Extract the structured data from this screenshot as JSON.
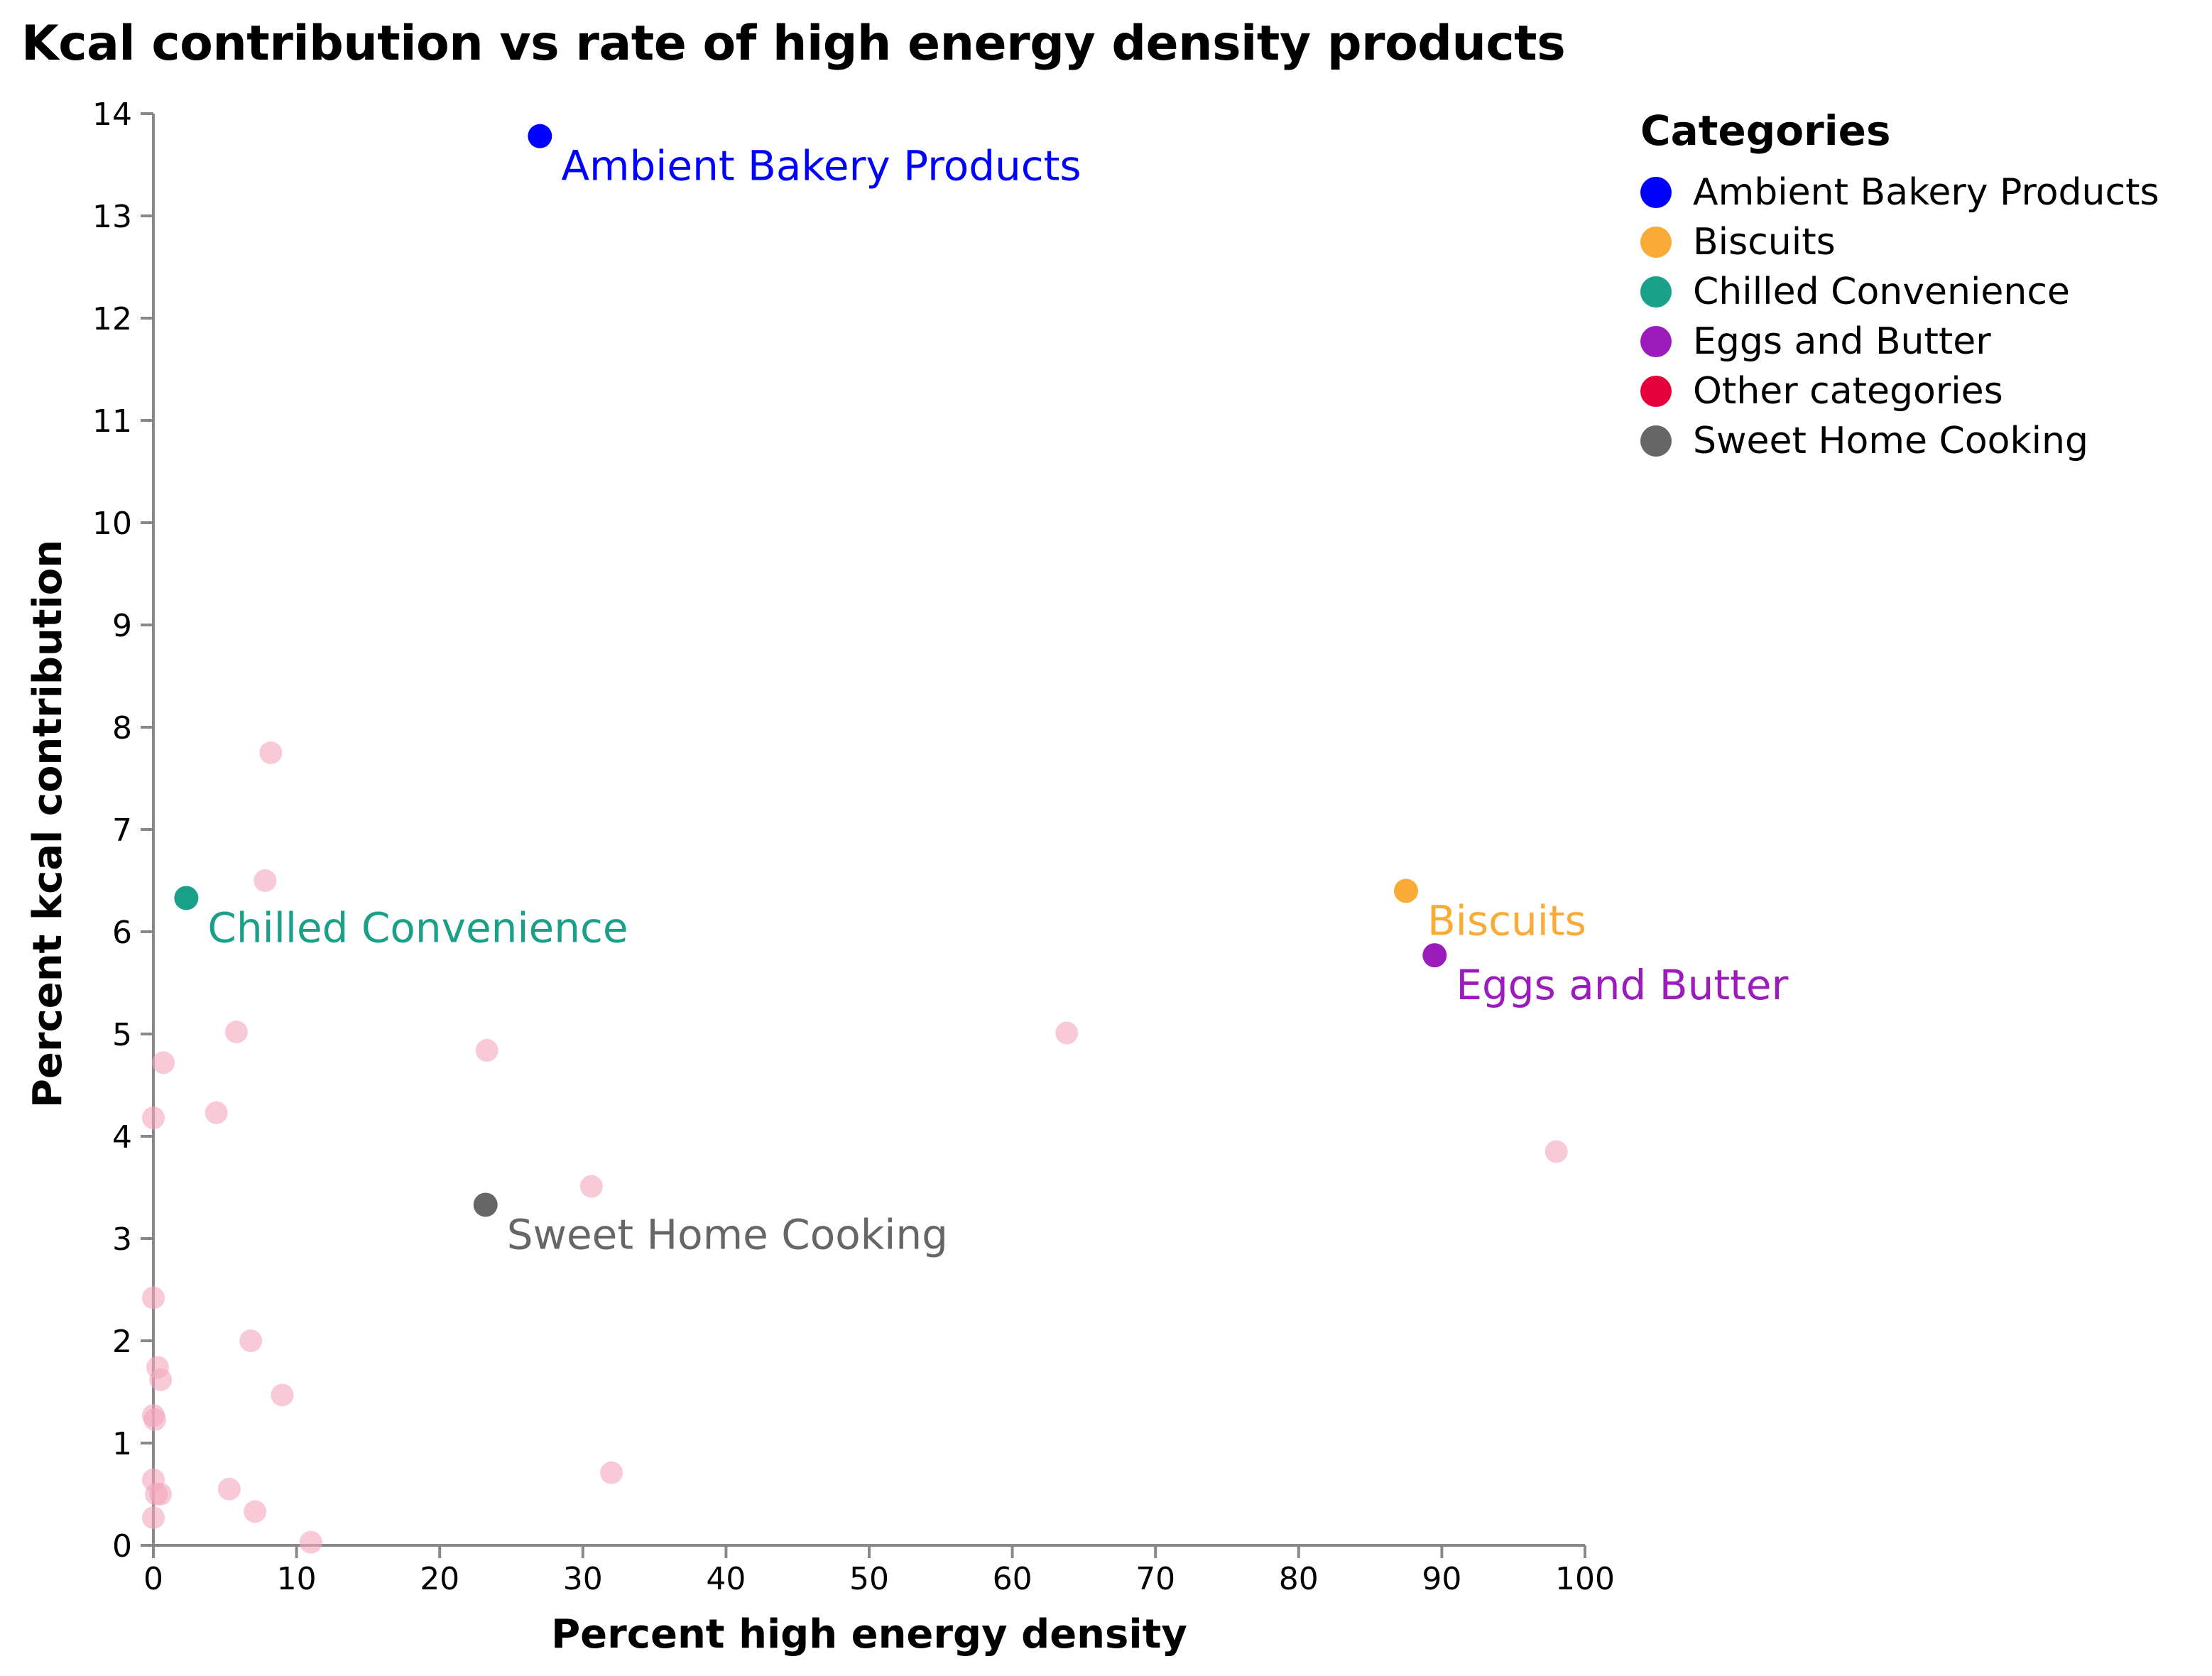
{
  "chart_data": {
    "type": "scatter",
    "title": "Kcal contribution vs rate of high energy density products",
    "xlabel": "Percent high energy density",
    "ylabel": "Percent kcal contribution",
    "xlim": [
      0,
      100
    ],
    "ylim": [
      0,
      14
    ],
    "x_ticks": [
      0,
      10,
      20,
      30,
      40,
      50,
      60,
      70,
      80,
      90,
      100
    ],
    "y_ticks": [
      0,
      1,
      2,
      3,
      4,
      5,
      6,
      7,
      8,
      9,
      10,
      11,
      12,
      13,
      14
    ],
    "grid": false,
    "legend": {
      "title": "Categories",
      "placement": "right",
      "items": [
        {
          "name": "Ambient Bakery Products",
          "color": "#0000ff"
        },
        {
          "name": "Biscuits",
          "color": "#f9ab36"
        },
        {
          "name": "Chilled Convenience",
          "color": "#1aa088"
        },
        {
          "name": "Eggs and Butter",
          "color": "#9b1bbd"
        },
        {
          "name": "Other categories",
          "color": "#e4003b"
        },
        {
          "name": "Sweet Home Cooking",
          "color": "#666666"
        }
      ]
    },
    "highlighted": [
      {
        "name": "Ambient Bakery Products",
        "x": 27.0,
        "y": 13.78,
        "color": "#0000ff"
      },
      {
        "name": "Biscuits",
        "x": 87.5,
        "y": 6.4,
        "color": "#f9ab36"
      },
      {
        "name": "Chilled Convenience",
        "x": 2.3,
        "y": 6.33,
        "color": "#1aa088"
      },
      {
        "name": "Eggs and Butter",
        "x": 89.5,
        "y": 5.77,
        "color": "#9b1bbd"
      },
      {
        "name": "Sweet Home Cooking",
        "x": 23.2,
        "y": 3.33,
        "color": "#666666"
      }
    ],
    "other": {
      "name": "Other categories",
      "color": "#f4a6bd",
      "points": [
        [
          8.2,
          7.75
        ],
        [
          7.8,
          6.5
        ],
        [
          5.8,
          5.02
        ],
        [
          0.7,
          4.72
        ],
        [
          23.3,
          4.84
        ],
        [
          63.8,
          5.01
        ],
        [
          98.0,
          3.85
        ],
        [
          4.4,
          4.23
        ],
        [
          0.0,
          4.18
        ],
        [
          30.6,
          3.51
        ],
        [
          0.0,
          2.42
        ],
        [
          6.8,
          2.0
        ],
        [
          0.3,
          1.74
        ],
        [
          0.5,
          1.62
        ],
        [
          0.0,
          1.27
        ],
        [
          0.1,
          1.23
        ],
        [
          9.0,
          1.47
        ],
        [
          32.0,
          0.71
        ],
        [
          0.0,
          0.64
        ],
        [
          0.2,
          0.5
        ],
        [
          0.5,
          0.5
        ],
        [
          5.3,
          0.55
        ],
        [
          7.1,
          0.33
        ],
        [
          0.0,
          0.27
        ],
        [
          11.0,
          0.03
        ]
      ]
    }
  }
}
